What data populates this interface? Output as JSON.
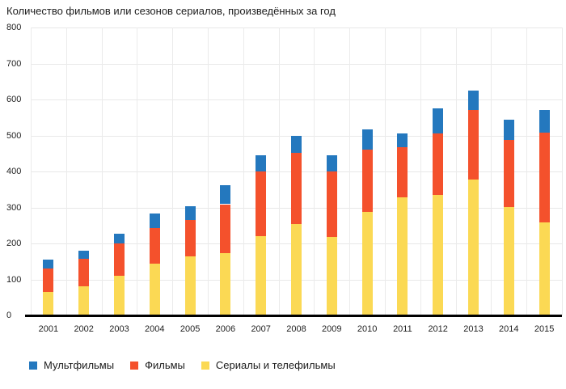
{
  "title": "Количество фильмов или сезонов сериалов, произведённых за год",
  "colors": {
    "animation_blue": "#2478be",
    "films_orange": "#f4512c",
    "series_yellow": "#fbd954",
    "grid": "#e8e8e8",
    "axis_line": "#000000",
    "text": "#1c1c1c"
  },
  "legend": [
    {
      "label": "Мультфильмы",
      "color": "#2478be"
    },
    {
      "label": "Фильмы",
      "color": "#f4512c"
    },
    {
      "label": "Сериалы и телефильмы",
      "color": "#fbd954"
    }
  ],
  "chart_data": {
    "type": "bar",
    "stacked": true,
    "title": "Количество фильмов или сезонов сериалов, произведённых за год",
    "categories": [
      "2001",
      "2002",
      "2003",
      "2004",
      "2005",
      "2006",
      "2007",
      "2008",
      "2009",
      "2010",
      "2011",
      "2012",
      "2013",
      "2014",
      "2015"
    ],
    "series": [
      {
        "name": "Сериалы и телефильмы",
        "color": "#fbd954",
        "values": [
          65,
          82,
          111,
          143,
          165,
          174,
          220,
          253,
          218,
          288,
          328,
          335,
          378,
          300,
          258
        ]
      },
      {
        "name": "Фильмы",
        "color": "#f4512c",
        "values": [
          66,
          76,
          90,
          100,
          100,
          135,
          180,
          199,
          182,
          172,
          140,
          170,
          193,
          188,
          250
        ]
      },
      {
        "name": "Мультфильмы",
        "color": "#2478be",
        "values": [
          25,
          22,
          27,
          41,
          38,
          52,
          45,
          48,
          44,
          57,
          38,
          70,
          53,
          55,
          63
        ]
      }
    ],
    "stack_order_bottom_to_top": [
      "Сериалы и телефильмы",
      "Фильмы",
      "Мультфильмы"
    ],
    "totals": [
      156,
      180,
      228,
      284,
      303,
      361,
      445,
      500,
      444,
      517,
      506,
      575,
      624,
      543,
      571
    ],
    "ylim": [
      0,
      800
    ],
    "yticks": [
      0,
      100,
      200,
      300,
      400,
      500,
      600,
      700,
      800
    ],
    "grid": true,
    "legend_position": "bottom-left"
  }
}
